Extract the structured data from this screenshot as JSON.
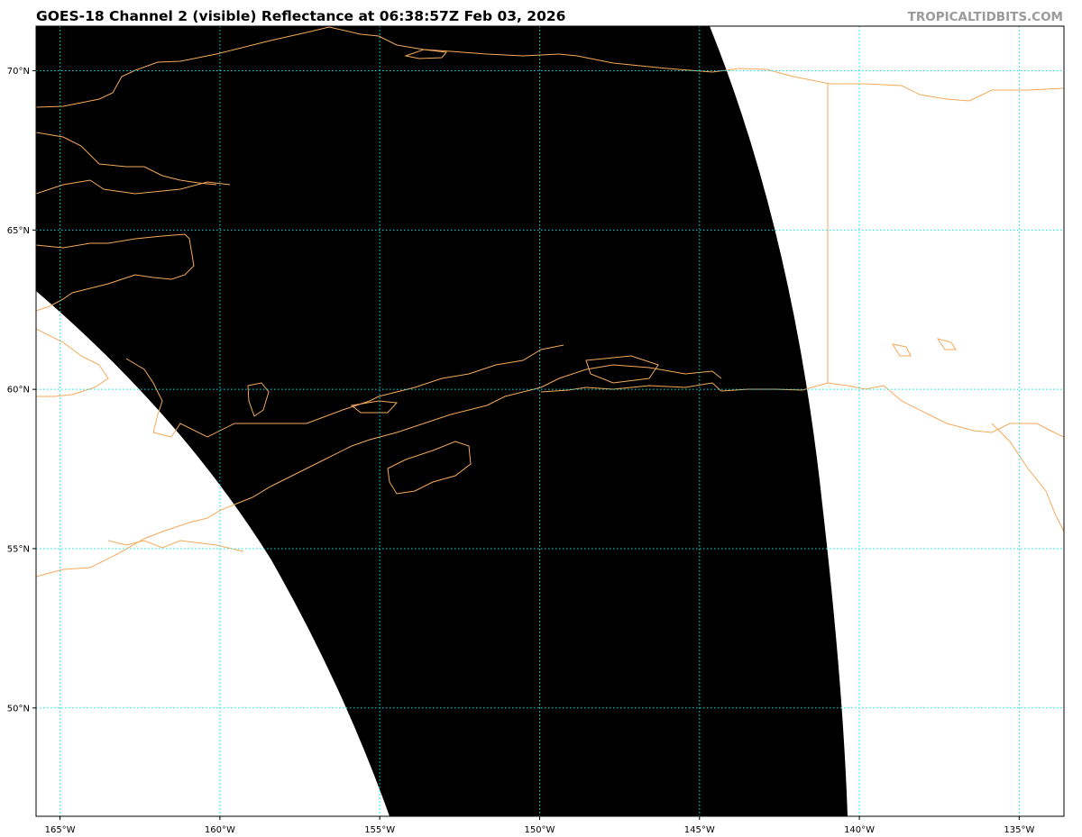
{
  "title": "GOES-18 Channel 2 (visible) Reflectance at 06:38:57Z Feb 03, 2026",
  "credit": "TROPICALTIDBITS.COM",
  "map": {
    "satellite": "GOES-18",
    "channel": "Channel 2 (visible)",
    "lon_range": [
      -165.75,
      -133.6
    ],
    "lat_range": [
      46.6,
      71.4
    ],
    "gridlines": {
      "color": "#00e5ee",
      "style": "dotted",
      "lons": [
        -165,
        -160,
        -155,
        -150,
        -145,
        -140,
        -135
      ],
      "lats": [
        70,
        65,
        60,
        55,
        50
      ]
    },
    "lon_labels": [
      "165°W",
      "160°W",
      "155°W",
      "150°W",
      "145°W",
      "140°W",
      "135°W"
    ],
    "lat_labels": [
      "70°N",
      "65°N",
      "60°N",
      "55°N",
      "50°N"
    ],
    "coastline_color": "#f4a95a",
    "night_fill_color": "#000000",
    "background_color": "#ffffff"
  }
}
